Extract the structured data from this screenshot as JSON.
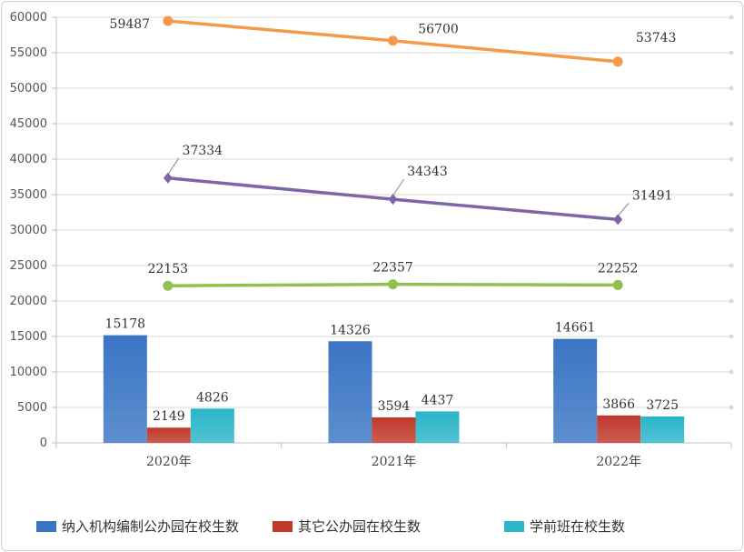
{
  "chart_data": {
    "type": "bar",
    "categories": [
      "2020年",
      "2021年",
      "2022年"
    ],
    "ylim": [
      0,
      60000
    ],
    "yticks": [
      "0",
      "5000",
      "10000",
      "15000",
      "20000",
      "25000",
      "30000",
      "35000",
      "40000",
      "45000",
      "50000",
      "55000",
      "60000"
    ],
    "grid": true,
    "legend_position": "bottom",
    "bar_series": [
      {
        "name": "纳入机构编制公办园在校生数",
        "values": [
          15178,
          14326,
          14661
        ],
        "labels": [
          "15178",
          "14326",
          "14661"
        ],
        "color": "#3a75c4"
      },
      {
        "name": "其它公办园在校生数",
        "values": [
          2149,
          3594,
          3866
        ],
        "labels": [
          "2149",
          "3594",
          "3866"
        ],
        "color": "#c0392b"
      },
      {
        "name": "学前班在校生数",
        "values": [
          4826,
          4437,
          3725
        ],
        "labels": [
          "4826",
          "4437",
          "3725"
        ],
        "color": "#2bb5c9"
      }
    ],
    "line_series": [
      {
        "values": [
          59487,
          56700,
          53743
        ],
        "labels": [
          "59487",
          "56700",
          "53743"
        ],
        "color": "#f39a4c"
      },
      {
        "values": [
          37334,
          34343,
          31491
        ],
        "labels": [
          "37334",
          "34343",
          "31491"
        ],
        "color": "#8064a8"
      },
      {
        "values": [
          22153,
          22357,
          22252
        ],
        "labels": [
          "22153",
          "22357",
          "22252"
        ],
        "color": "#92c050"
      }
    ]
  }
}
